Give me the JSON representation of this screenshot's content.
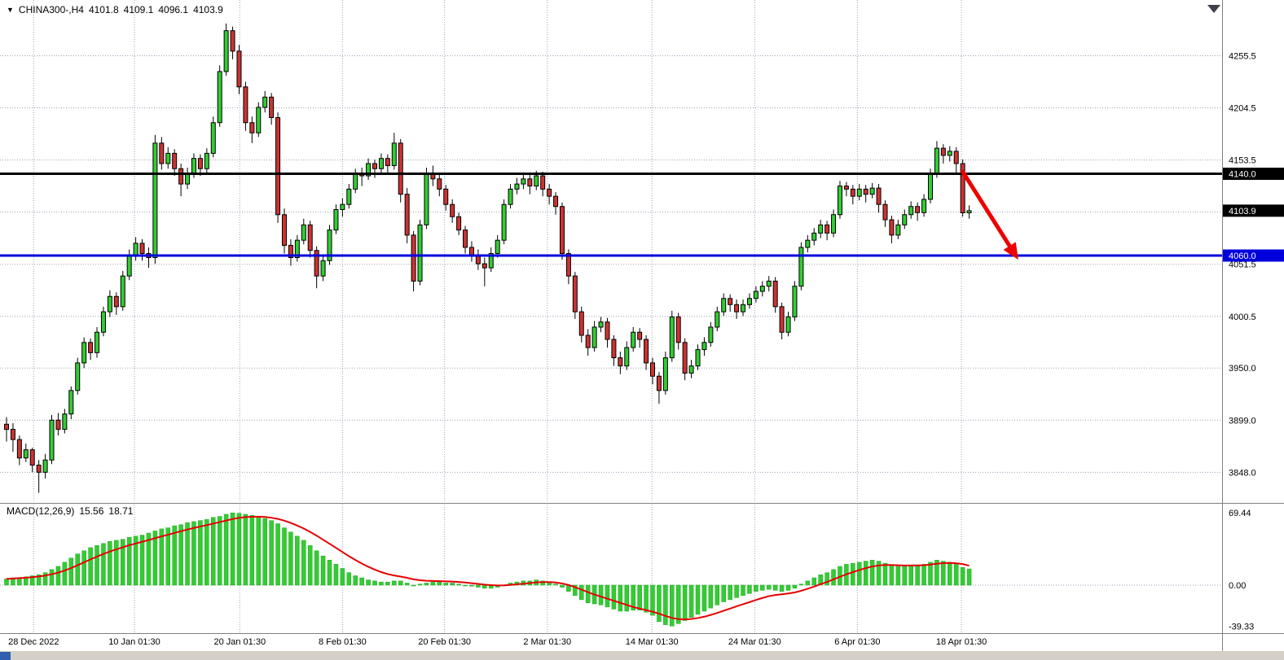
{
  "header": {
    "dropdown_icon": "▼",
    "symbol": "CHINA300-,H4",
    "open": "4101.8",
    "high": "4109.1",
    "low": "4096.1",
    "close": "4103.9"
  },
  "indicator": {
    "name": "MACD(12,26,9)",
    "macd_value": "15.56",
    "signal_value": "18.71"
  },
  "colors": {
    "bull": "#33cc33",
    "bear": "#cc3333",
    "wick": "#000000",
    "histogram": "#33cc33",
    "histogram_border": "#1fa51f",
    "signal": "#e60000",
    "support_line": "#0000dd",
    "resistance_line": "#000000",
    "arrow": "#ee0000",
    "grid": "#9aa3b8",
    "separator": "#808080",
    "current_badge": "#000000",
    "strip": "#d4d0c8",
    "scroll_thumb": "#2f5fae",
    "corner_icon": "#40404a"
  },
  "chart_data": [
    {
      "type": "candlestick",
      "title": "CHINA300-,H4",
      "timeframe": "H4",
      "ylim": [
        3818,
        4310
      ],
      "price_axis_labels": [
        "4255.5",
        "4204.5",
        "4153.5",
        "4051.5",
        "4000.5",
        "3950.0",
        "3899.0",
        "3848.0"
      ],
      "grid_extra": [
        4102.5
      ],
      "hlines": [
        {
          "label": "4140.0",
          "value": 4140.0,
          "color": "#000000",
          "width": 3
        },
        {
          "label": "4060.0",
          "value": 4060.0,
          "color": "#0000dd",
          "width": 3
        }
      ],
      "current_price": {
        "label": "4103.9",
        "value": 4103.9
      },
      "arrow": {
        "from_index": 148.0,
        "from_price": 4142,
        "to_index": 156.6,
        "to_price": 4056
      },
      "x_ticks": [
        {
          "label": "28 Dec 2022",
          "index": 4.2
        },
        {
          "label": "10 Jan 01:30",
          "index": 19.8
        },
        {
          "label": "20 Jan 01:30",
          "index": 36.1
        },
        {
          "label": "8 Feb 01:30",
          "index": 52.0
        },
        {
          "label": "20 Feb 01:30",
          "index": 67.8
        },
        {
          "label": "2 Mar 01:30",
          "index": 83.7
        },
        {
          "label": "14 Mar 01:30",
          "index": 99.9
        },
        {
          "label": "24 Mar 01:30",
          "index": 115.8
        },
        {
          "label": "6 Apr 01:30",
          "index": 131.7
        },
        {
          "label": "18 Apr 01:30",
          "index": 147.8
        }
      ],
      "candles": [
        [
          3895,
          3902,
          3878,
          3890
        ],
        [
          3890,
          3896,
          3868,
          3880
        ],
        [
          3880,
          3884,
          3855,
          3862
        ],
        [
          3862,
          3876,
          3858,
          3870
        ],
        [
          3870,
          3872,
          3848,
          3855
        ],
        [
          3855,
          3860,
          3828,
          3848
        ],
        [
          3848,
          3866,
          3842,
          3860
        ],
        [
          3860,
          3904,
          3856,
          3899
        ],
        [
          3899,
          3906,
          3884,
          3890
        ],
        [
          3890,
          3910,
          3886,
          3905
        ],
        [
          3905,
          3932,
          3900,
          3928
        ],
        [
          3928,
          3960,
          3924,
          3955
        ],
        [
          3955,
          3980,
          3950,
          3975
        ],
        [
          3975,
          3979,
          3958,
          3965
        ],
        [
          3965,
          3990,
          3960,
          3985
        ],
        [
          3985,
          4010,
          3981,
          4005
        ],
        [
          4005,
          4026,
          4000,
          4020
        ],
        [
          4020,
          4024,
          4002,
          4010
        ],
        [
          4010,
          4045,
          4006,
          4040
        ],
        [
          4040,
          4066,
          4036,
          4060
        ],
        [
          4060,
          4078,
          4055,
          4072
        ],
        [
          4072,
          4076,
          4055,
          4062
        ],
        [
          4062,
          4068,
          4048,
          4058
        ],
        [
          4058,
          4178,
          4052,
          4170
        ],
        [
          4170,
          4176,
          4144,
          4150
        ],
        [
          4150,
          4166,
          4145,
          4160
        ],
        [
          4160,
          4164,
          4138,
          4145
        ],
        [
          4145,
          4150,
          4118,
          4130
        ],
        [
          4130,
          4146,
          4125,
          4140
        ],
        [
          4140,
          4160,
          4136,
          4155
        ],
        [
          4155,
          4159,
          4138,
          4145
        ],
        [
          4145,
          4165,
          4141,
          4160
        ],
        [
          4160,
          4196,
          4156,
          4190
        ],
        [
          4190,
          4246,
          4186,
          4240
        ],
        [
          4240,
          4287,
          4236,
          4280
        ],
        [
          4280,
          4284,
          4252,
          4260
        ],
        [
          4260,
          4266,
          4218,
          4225
        ],
        [
          4225,
          4230,
          4182,
          4190
        ],
        [
          4190,
          4196,
          4170,
          4180
        ],
        [
          4180,
          4210,
          4176,
          4205
        ],
        [
          4205,
          4221,
          4200,
          4215
        ],
        [
          4215,
          4219,
          4188,
          4195
        ],
        [
          4195,
          4200,
          4092,
          4100
        ],
        [
          4100,
          4106,
          4062,
          4070
        ],
        [
          4070,
          4076,
          4050,
          4058
        ],
        [
          4058,
          4080,
          4054,
          4075
        ],
        [
          4075,
          4096,
          4071,
          4090
        ],
        [
          4090,
          4094,
          4058,
          4065
        ],
        [
          4065,
          4069,
          4028,
          4040
        ],
        [
          4040,
          4060,
          4035,
          4055
        ],
        [
          4055,
          4090,
          4051,
          4085
        ],
        [
          4085,
          4110,
          4081,
          4105
        ],
        [
          4105,
          4116,
          4098,
          4110
        ],
        [
          4110,
          4130,
          4106,
          4125
        ],
        [
          4125,
          4145,
          4121,
          4140
        ],
        [
          4140,
          4146,
          4128,
          4138
        ],
        [
          4138,
          4155,
          4134,
          4150
        ],
        [
          4150,
          4154,
          4136,
          4145
        ],
        [
          4145,
          4160,
          4141,
          4155
        ],
        [
          4155,
          4159,
          4140,
          4148
        ],
        [
          4148,
          4180,
          4144,
          4170
        ],
        [
          4170,
          4174,
          4112,
          4120
        ],
        [
          4120,
          4126,
          4072,
          4080
        ],
        [
          4080,
          4084,
          4025,
          4035
        ],
        [
          4035,
          4095,
          4031,
          4090
        ],
        [
          4090,
          4146,
          4086,
          4140
        ],
        [
          4140,
          4148,
          4128,
          4135
        ],
        [
          4135,
          4140,
          4118,
          4125
        ],
        [
          4125,
          4129,
          4104,
          4110
        ],
        [
          4110,
          4115,
          4092,
          4098
        ],
        [
          4098,
          4102,
          4080,
          4085
        ],
        [
          4085,
          4089,
          4062,
          4068
        ],
        [
          4068,
          4074,
          4054,
          4060
        ],
        [
          4060,
          4066,
          4046,
          4052
        ],
        [
          4052,
          4058,
          4030,
          4048
        ],
        [
          4048,
          4068,
          4044,
          4062
        ],
        [
          4062,
          4080,
          4058,
          4075
        ],
        [
          4075,
          4115,
          4071,
          4110
        ],
        [
          4110,
          4130,
          4106,
          4125
        ],
        [
          4125,
          4136,
          4120,
          4130
        ],
        [
          4130,
          4141,
          4125,
          4135
        ],
        [
          4135,
          4139,
          4120,
          4128
        ],
        [
          4128,
          4143,
          4124,
          4138
        ],
        [
          4138,
          4142,
          4118,
          4125
        ],
        [
          4125,
          4130,
          4110,
          4118
        ],
        [
          4118,
          4122,
          4100,
          4108
        ],
        [
          4108,
          4112,
          4056,
          4062
        ],
        [
          4062,
          4066,
          4032,
          4040
        ],
        [
          4040,
          4044,
          3998,
          4005
        ],
        [
          4005,
          4010,
          3975,
          3982
        ],
        [
          3982,
          3988,
          3962,
          3970
        ],
        [
          3970,
          3996,
          3966,
          3990
        ],
        [
          3990,
          4000,
          3985,
          3995
        ],
        [
          3995,
          3999,
          3970,
          3978
        ],
        [
          3978,
          3982,
          3952,
          3960
        ],
        [
          3960,
          3966,
          3944,
          3952
        ],
        [
          3952,
          3976,
          3948,
          3970
        ],
        [
          3970,
          3990,
          3966,
          3985
        ],
        [
          3985,
          3989,
          3970,
          3978
        ],
        [
          3978,
          3982,
          3948,
          3955
        ],
        [
          3955,
          3960,
          3934,
          3942
        ],
        [
          3942,
          3946,
          3915,
          3928
        ],
        [
          3928,
          3966,
          3924,
          3960
        ],
        [
          3960,
          4006,
          3956,
          4000
        ],
        [
          4000,
          4004,
          3968,
          3975
        ],
        [
          3975,
          3979,
          3938,
          3945
        ],
        [
          3945,
          3958,
          3940,
          3952
        ],
        [
          3952,
          3973,
          3948,
          3968
        ],
        [
          3968,
          3980,
          3962,
          3975
        ],
        [
          3975,
          3995,
          3971,
          3990
        ],
        [
          3990,
          4010,
          3986,
          4005
        ],
        [
          4005,
          4023,
          4001,
          4018
        ],
        [
          4018,
          4022,
          4005,
          4012
        ],
        [
          4012,
          4017,
          3998,
          4005
        ],
        [
          4005,
          4017,
          4001,
          4012
        ],
        [
          4012,
          4023,
          4008,
          4018
        ],
        [
          4018,
          4030,
          4014,
          4025
        ],
        [
          4025,
          4035,
          4020,
          4030
        ],
        [
          4030,
          4040,
          4025,
          4035
        ],
        [
          4035,
          4039,
          4004,
          4010
        ],
        [
          4010,
          4014,
          3978,
          3985
        ],
        [
          3985,
          4005,
          3981,
          4000
        ],
        [
          4000,
          4035,
          3996,
          4030
        ],
        [
          4030,
          4073,
          4026,
          4068
        ],
        [
          4068,
          4080,
          4063,
          4075
        ],
        [
          4075,
          4087,
          4070,
          4082
        ],
        [
          4082,
          4095,
          4077,
          4090
        ],
        [
          4090,
          4094,
          4075,
          4082
        ],
        [
          4082,
          4105,
          4078,
          4100
        ],
        [
          4100,
          4133,
          4096,
          4128
        ],
        [
          4128,
          4132,
          4118,
          4125
        ],
        [
          4125,
          4129,
          4110,
          4118
        ],
        [
          4118,
          4130,
          4114,
          4125
        ],
        [
          4125,
          4129,
          4112,
          4120
        ],
        [
          4120,
          4131,
          4116,
          4126
        ],
        [
          4126,
          4130,
          4102,
          4110
        ],
        [
          4110,
          4114,
          4088,
          4095
        ],
        [
          4095,
          4099,
          4072,
          4080
        ],
        [
          4080,
          4095,
          4076,
          4090
        ],
        [
          4090,
          4105,
          4086,
          4100
        ],
        [
          4100,
          4113,
          4096,
          4108
        ],
        [
          4108,
          4112,
          4094,
          4102
        ],
        [
          4102,
          4120,
          4098,
          4115
        ],
        [
          4115,
          4145,
          4111,
          4140
        ],
        [
          4140,
          4172,
          4136,
          4165
        ],
        [
          4165,
          4169,
          4150,
          4158
        ],
        [
          4158,
          4167,
          4152,
          4162
        ],
        [
          4162,
          4166,
          4140,
          4150
        ],
        [
          4150,
          4154,
          4098,
          4101.8
        ],
        [
          4101.8,
          4109.1,
          4096.1,
          4103.9
        ]
      ]
    },
    {
      "type": "bar",
      "name": "MACD(12,26,9)",
      "ylim": [
        -46,
        77
      ],
      "axis_labels": [
        "69.44",
        "0.00",
        "-39.33"
      ],
      "values": [
        6,
        7,
        7,
        8,
        9,
        10,
        12,
        15,
        18,
        22,
        26,
        30,
        33,
        36,
        38,
        40,
        42,
        43,
        44,
        46,
        47,
        48,
        50,
        52,
        54,
        55,
        57,
        58,
        60,
        61,
        62,
        63,
        65,
        66,
        68,
        69.4,
        69,
        68,
        67,
        66,
        64,
        62,
        59,
        55,
        51,
        47,
        43,
        38,
        33,
        28,
        24,
        20,
        16,
        12,
        9,
        7,
        5,
        4,
        3,
        3,
        4,
        4,
        2,
        0,
        1,
        2,
        3,
        3,
        2,
        2,
        1,
        0,
        -1,
        -2,
        -3,
        -3,
        -2,
        0,
        2,
        3,
        4,
        4,
        5,
        4,
        3,
        1,
        -2,
        -6,
        -10,
        -14,
        -17,
        -18,
        -19,
        -21,
        -23,
        -25,
        -25,
        -24,
        -24,
        -26,
        -29,
        -35,
        -38,
        -39.3,
        -37,
        -34,
        -31,
        -28,
        -25,
        -22,
        -19,
        -16,
        -14,
        -12,
        -10,
        -8,
        -6,
        -5,
        -4,
        -5,
        -6,
        -5,
        -3,
        1,
        4,
        7,
        10,
        12,
        15,
        18,
        20,
        21,
        22,
        23,
        24,
        23,
        21,
        19,
        18,
        18,
        19,
        19,
        20,
        22,
        24,
        23,
        22,
        20,
        17,
        15.56
      ],
      "signal_line": {
        "name": "signal",
        "values": [
          6,
          6.3,
          6.7,
          7.1,
          7.6,
          8.3,
          9.2,
          10.5,
          12,
          14,
          16.4,
          19.1,
          21.9,
          24.7,
          27.4,
          29.9,
          32.3,
          34.4,
          36.3,
          38.3,
          40,
          41.6,
          43.3,
          45,
          46.8,
          48.4,
          50.1,
          51.7,
          53.4,
          54.9,
          56.3,
          57.6,
          59.1,
          60.5,
          62,
          63.5,
          64.6,
          65.3,
          65.6,
          65.7,
          65.4,
          64.7,
          63.6,
          61.9,
          59.7,
          57.2,
          54.4,
          51.1,
          47.5,
          43.6,
          39.7,
          35.8,
          31.8,
          27.8,
          24.1,
          20.7,
          17.6,
          14.9,
          12.5,
          10.6,
          9.3,
          8.2,
          7,
          5.6,
          4.7,
          4.2,
          4,
          3.8,
          3.6,
          3.4,
          3,
          2.5,
          1.9,
          1.2,
          0.5,
          0,
          -0.3,
          -0.2,
          0.2,
          0.8,
          1.4,
          2,
          2.6,
          2.9,
          2.9,
          2.5,
          1.6,
          0.1,
          -1.9,
          -4.3,
          -6.8,
          -9,
          -11,
          -13,
          -15,
          -17,
          -19,
          -21,
          -22.5,
          -24,
          -25.5,
          -27.4,
          -29.5,
          -31.5,
          -32.6,
          -32.9,
          -32.5,
          -31.6,
          -30.3,
          -28.6,
          -26.7,
          -24.6,
          -22.5,
          -20.4,
          -18.3,
          -16.3,
          -14.2,
          -12.3,
          -10.6,
          -9.5,
          -8.8,
          -8,
          -7,
          -5.4,
          -3.5,
          -1.4,
          0.9,
          3.1,
          5.5,
          8,
          10.4,
          12.5,
          14.5,
          16.3,
          17.9,
          18.9,
          19.3,
          19.3,
          19,
          18.8,
          18.8,
          18.9,
          19.1,
          19.7,
          20.6,
          21.1,
          21.3,
          21,
          20.2,
          18.71
        ]
      }
    }
  ]
}
